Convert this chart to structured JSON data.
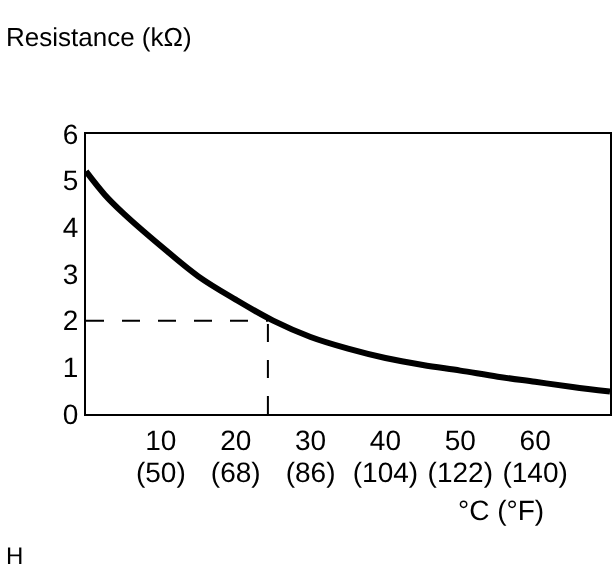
{
  "chart_data": {
    "type": "line",
    "ylabel": "Resistance (kΩ)",
    "xlabel": "°C (°F)",
    "x": [
      0,
      2.5,
      5,
      10,
      15,
      20,
      25,
      30,
      35,
      40,
      45,
      50,
      55,
      60,
      65,
      70
    ],
    "series": [
      {
        "color": "#000000",
        "values": [
          5.2,
          4.7,
          4.3,
          3.6,
          2.95,
          2.45,
          2.0,
          1.65,
          1.4,
          1.2,
          1.05,
          0.93,
          0.8,
          0.69,
          0.58,
          0.48
        ]
      }
    ],
    "ref_lines": [
      {
        "axis": "y",
        "value": 2,
        "color": "#000000",
        "line_style": "dashed"
      },
      {
        "axis": "x",
        "value": 24.3,
        "color": "#000000",
        "line_style": "dashed"
      }
    ],
    "xlim": [
      0,
      70
    ],
    "ylim": [
      0,
      6
    ],
    "xticks": [
      10,
      20,
      30,
      40,
      50,
      60
    ],
    "x2lim": [
      32,
      158
    ],
    "x2ticks": [
      {
        "value": 50,
        "label": "(50)"
      },
      {
        "value": 68,
        "label": "(68)"
      },
      {
        "value": 86,
        "label": "(86)"
      },
      {
        "value": 104,
        "label": "(104)"
      },
      {
        "value": 122,
        "label": "(122)"
      },
      {
        "value": 140,
        "label": "(140)"
      }
    ],
    "yticks": [
      0,
      1,
      2,
      3,
      4,
      5,
      6
    ],
    "annotations": [
      "H"
    ]
  }
}
